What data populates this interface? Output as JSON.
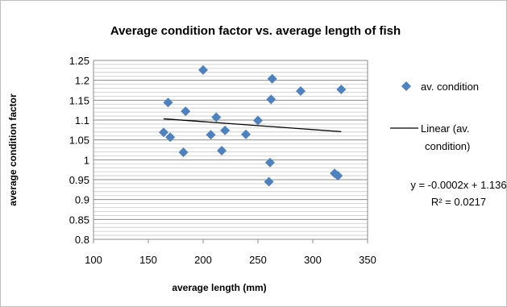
{
  "chart_data": {
    "type": "scatter",
    "title": "Average condition factor vs. average length of fish",
    "xlabel": "average length (mm)",
    "ylabel": "average condition factor",
    "xlim": [
      100,
      350
    ],
    "ylim": [
      0.8,
      1.25
    ],
    "x_ticks": [
      "100",
      "150",
      "200",
      "250",
      "300",
      "350"
    ],
    "y_ticks": [
      "0.8",
      "0.85",
      "0.9",
      "0.95",
      "1",
      "1.05",
      "1.1",
      "1.15",
      "1.2",
      "1.25"
    ],
    "grid": true,
    "legend_position": "right",
    "series": [
      {
        "name": "av. condition",
        "color": "#4f81bd",
        "marker": "diamond",
        "points": [
          {
            "x": 164,
            "y": 1.069
          },
          {
            "x": 168,
            "y": 1.144
          },
          {
            "x": 170,
            "y": 1.057
          },
          {
            "x": 182,
            "y": 1.019
          },
          {
            "x": 184,
            "y": 1.122
          },
          {
            "x": 200,
            "y": 1.226
          },
          {
            "x": 207,
            "y": 1.063
          },
          {
            "x": 212,
            "y": 1.107
          },
          {
            "x": 217,
            "y": 1.023
          },
          {
            "x": 220,
            "y": 1.074
          },
          {
            "x": 239,
            "y": 1.064
          },
          {
            "x": 250,
            "y": 1.099
          },
          {
            "x": 260,
            "y": 0.945
          },
          {
            "x": 261,
            "y": 0.993
          },
          {
            "x": 262,
            "y": 1.152
          },
          {
            "x": 263,
            "y": 1.204
          },
          {
            "x": 289,
            "y": 1.173
          },
          {
            "x": 320,
            "y": 0.966
          },
          {
            "x": 323,
            "y": 0.96
          },
          {
            "x": 326,
            "y": 1.177
          }
        ]
      }
    ],
    "trendline": {
      "name": "Linear (av. condition)",
      "name_lines": [
        "Linear (av.",
        "condition)"
      ],
      "color": "#000000",
      "slope": -0.0002,
      "intercept": 1.136,
      "x_range": [
        164,
        326
      ],
      "equation": "y = -0.0002x + 1.136",
      "r_squared": "R² = 0.0217"
    }
  }
}
